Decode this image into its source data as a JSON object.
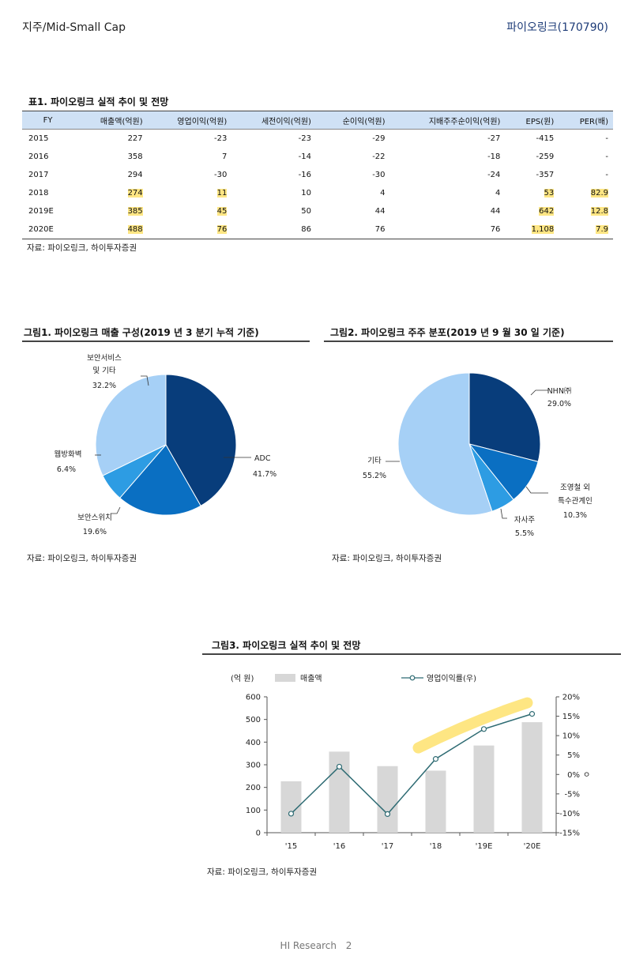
{
  "header": {
    "left": "지주/Mid-Small Cap",
    "right": "파이오링크(170790)"
  },
  "table": {
    "title": "표1. 파이오링크 실적 추이 및 전망",
    "columns": [
      "FY",
      "매출액(억원)",
      "영업이익(억원)",
      "세전이익(억원)",
      "순이익(억원)",
      "지배주주순이익(억원)",
      "EPS(원)",
      "PER(배)"
    ],
    "rows": [
      [
        "2015",
        "227",
        "-23",
        "-23",
        "-29",
        "-27",
        "-415",
        "-"
      ],
      [
        "2016",
        "358",
        "7",
        "-14",
        "-22",
        "-18",
        "-259",
        "-"
      ],
      [
        "2017",
        "294",
        "-30",
        "-16",
        "-30",
        "-24",
        "-357",
        "-"
      ],
      [
        "2018",
        "274",
        "11",
        "10",
        "4",
        "4",
        "53",
        "82.9"
      ],
      [
        "2019E",
        "385",
        "45",
        "50",
        "44",
        "44",
        "642",
        "12.8"
      ],
      [
        "2020E",
        "488",
        "76",
        "86",
        "76",
        "76",
        "1,108",
        "7.9"
      ]
    ],
    "source": "자료: 파이오링크, 하이투자증권"
  },
  "fig1": {
    "title": "그림1. 파이오링크 매출 구성(2019 년 3 분기 누적 기준)",
    "source": "자료: 파이오링크, 하이투자증권",
    "labels": {
      "service_1": "보안서비스",
      "service_2": "및 기타",
      "service_pct": "32.2%",
      "adc": "ADC",
      "adc_pct": "41.7%",
      "switch": "보안스위치",
      "switch_pct": "19.6%",
      "firewall": "웹방화벽",
      "firewall_pct": "6.4%"
    }
  },
  "fig2": {
    "title": "그림2. 파이오링크 주주 분포(2019 년 9 월 30 일 기준)",
    "source": "자료: 파이오링크, 하이투자증권",
    "labels": {
      "nhn": "NHN㈜",
      "nhn_pct": "29.0%",
      "cho_1": "조영철 외",
      "cho_2": "특수관계인",
      "cho_pct": "10.3%",
      "treasury": "자사주",
      "treasury_pct": "5.5%",
      "other": "기타",
      "other_pct": "55.2%"
    }
  },
  "fig3": {
    "title": "그림3. 파이오링크 실적 추이 및 전망",
    "source": "자료: 파이오링크, 하이투자증권",
    "unit": "(억 원)",
    "legend_bar": "매출액",
    "legend_line": "영업이익률(우)",
    "right_marker": "ㅇ"
  },
  "chart_data": [
    {
      "type": "pie",
      "title": "그림1. 파이오링크 매출 구성(2019 년 3 분기 누적 기준)",
      "categories": [
        "ADC",
        "보안스위치",
        "웹방화벽",
        "보안서비스 및 기타"
      ],
      "values": [
        41.7,
        19.6,
        6.4,
        32.2
      ],
      "colors": [
        "#083d7b",
        "#0a6fc2",
        "#2d9ce3",
        "#a6d0f6"
      ]
    },
    {
      "type": "pie",
      "title": "그림2. 파이오링크 주주 분포(2019 년 9 월 30 일 기준)",
      "categories": [
        "NHN㈜",
        "조영철 외 특수관계인",
        "자사주",
        "기타"
      ],
      "values": [
        29.0,
        10.3,
        5.5,
        55.2
      ],
      "colors": [
        "#083d7b",
        "#0a6fc2",
        "#2d9ce3",
        "#a6d0f6"
      ]
    },
    {
      "type": "bar",
      "title": "그림3. 파이오링크 실적 추이 및 전망",
      "categories": [
        "'15",
        "'16",
        "'17",
        "'18",
        "'19E",
        "'20E"
      ],
      "series": [
        {
          "name": "매출액",
          "type": "bar",
          "axis": "left",
          "values": [
            227,
            358,
            294,
            274,
            385,
            488
          ]
        },
        {
          "name": "영업이익률(우)",
          "type": "line",
          "axis": "right",
          "values": [
            -10.1,
            2.0,
            -10.2,
            4.0,
            11.7,
            15.6
          ]
        }
      ],
      "ylim": [
        0,
        600
      ],
      "yticks": [
        0,
        100,
        200,
        300,
        400,
        500,
        600
      ],
      "y2lim": [
        -15,
        20
      ],
      "y2ticks": [
        "-15%",
        "-10%",
        "-5%",
        "0%",
        "5%",
        "10%",
        "15%",
        "20%"
      ],
      "ylabel": "(억 원)"
    }
  ]
}
